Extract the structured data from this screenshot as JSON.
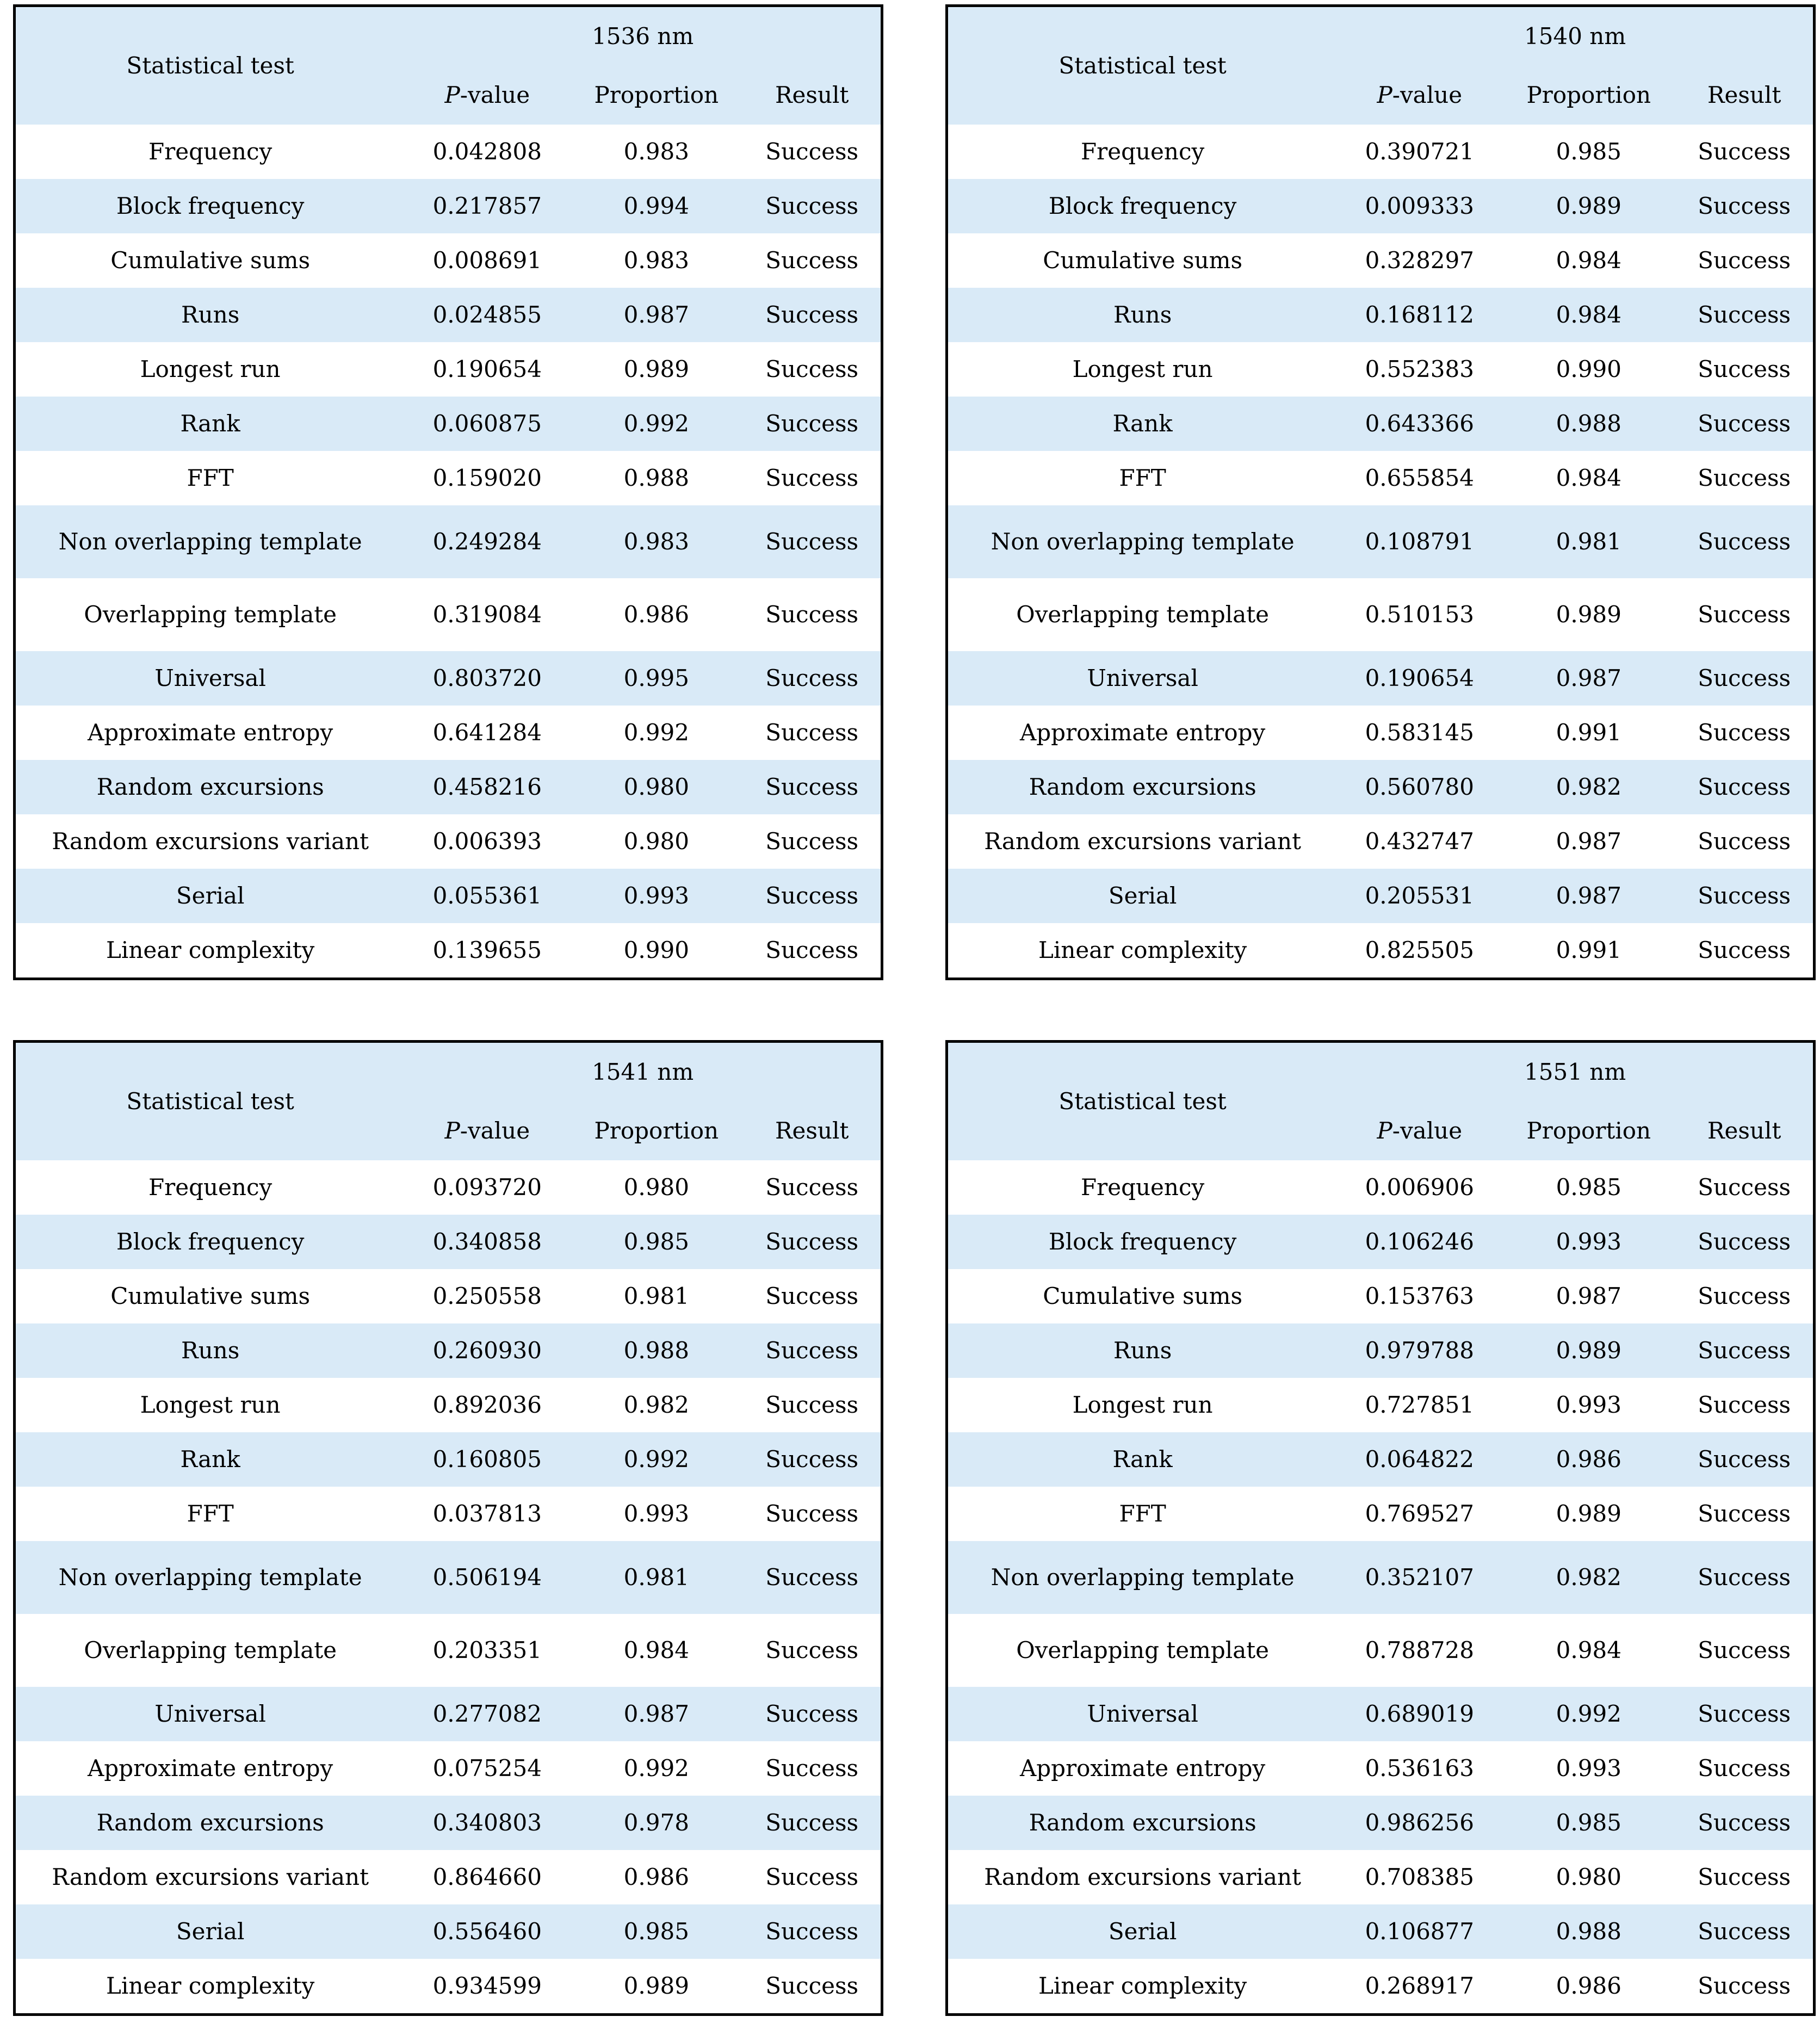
{
  "columns": {
    "test": "Statistical test",
    "p_italic": "P",
    "p_rest": "-value",
    "proportion": "Proportion",
    "result": "Result"
  },
  "tables": [
    {
      "wavelength": "1536 nm",
      "rows": [
        {
          "test": "Frequency",
          "p": "0.042808",
          "proportion": "0.983",
          "result": "Success"
        },
        {
          "test": "Block frequency",
          "p": "0.217857",
          "proportion": "0.994",
          "result": "Success"
        },
        {
          "test": "Cumulative sums",
          "p": "0.008691",
          "proportion": "0.983",
          "result": "Success"
        },
        {
          "test": "Runs",
          "p": "0.024855",
          "proportion": "0.987",
          "result": "Success"
        },
        {
          "test": "Longest run",
          "p": "0.190654",
          "proportion": "0.989",
          "result": "Success"
        },
        {
          "test": "Rank",
          "p": "0.060875",
          "proportion": "0.992",
          "result": "Success"
        },
        {
          "test": "FFT",
          "p": "0.159020",
          "proportion": "0.988",
          "result": "Success"
        },
        {
          "test": "Non overlapping template",
          "p": "0.249284",
          "proportion": "0.983",
          "result": "Success"
        },
        {
          "test": "Overlapping template",
          "p": "0.319084",
          "proportion": "0.986",
          "result": "Success"
        },
        {
          "test": "Universal",
          "p": "0.803720",
          "proportion": "0.995",
          "result": "Success"
        },
        {
          "test": "Approximate entropy",
          "p": "0.641284",
          "proportion": "0.992",
          "result": "Success"
        },
        {
          "test": "Random excursions",
          "p": "0.458216",
          "proportion": "0.980",
          "result": "Success"
        },
        {
          "test": "Random excursions variant",
          "p": "0.006393",
          "proportion": "0.980",
          "result": "Success"
        },
        {
          "test": "Serial",
          "p": "0.055361",
          "proportion": "0.993",
          "result": "Success"
        },
        {
          "test": "Linear complexity",
          "p": "0.139655",
          "proportion": "0.990",
          "result": "Success"
        }
      ]
    },
    {
      "wavelength": "1540 nm",
      "rows": [
        {
          "test": "Frequency",
          "p": "0.390721",
          "proportion": "0.985",
          "result": "Success"
        },
        {
          "test": "Block frequency",
          "p": "0.009333",
          "proportion": "0.989",
          "result": "Success"
        },
        {
          "test": "Cumulative sums",
          "p": "0.328297",
          "proportion": "0.984",
          "result": "Success"
        },
        {
          "test": "Runs",
          "p": "0.168112",
          "proportion": "0.984",
          "result": "Success"
        },
        {
          "test": "Longest run",
          "p": "0.552383",
          "proportion": "0.990",
          "result": "Success"
        },
        {
          "test": "Rank",
          "p": "0.643366",
          "proportion": "0.988",
          "result": "Success"
        },
        {
          "test": "FFT",
          "p": "0.655854",
          "proportion": "0.984",
          "result": "Success"
        },
        {
          "test": "Non overlapping template",
          "p": "0.108791",
          "proportion": "0.981",
          "result": "Success"
        },
        {
          "test": "Overlapping template",
          "p": "0.510153",
          "proportion": "0.989",
          "result": "Success"
        },
        {
          "test": "Universal",
          "p": "0.190654",
          "proportion": "0.987",
          "result": "Success"
        },
        {
          "test": "Approximate entropy",
          "p": "0.583145",
          "proportion": "0.991",
          "result": "Success"
        },
        {
          "test": "Random excursions",
          "p": "0.560780",
          "proportion": "0.982",
          "result": "Success"
        },
        {
          "test": "Random excursions variant",
          "p": "0.432747",
          "proportion": "0.987",
          "result": "Success"
        },
        {
          "test": "Serial",
          "p": "0.205531",
          "proportion": "0.987",
          "result": "Success"
        },
        {
          "test": "Linear complexity",
          "p": "0.825505",
          "proportion": "0.991",
          "result": "Success"
        }
      ]
    },
    {
      "wavelength": "1541 nm",
      "rows": [
        {
          "test": "Frequency",
          "p": "0.093720",
          "proportion": "0.980",
          "result": "Success"
        },
        {
          "test": "Block frequency",
          "p": "0.340858",
          "proportion": "0.985",
          "result": "Success"
        },
        {
          "test": "Cumulative sums",
          "p": "0.250558",
          "proportion": "0.981",
          "result": "Success"
        },
        {
          "test": "Runs",
          "p": "0.260930",
          "proportion": "0.988",
          "result": "Success"
        },
        {
          "test": "Longest run",
          "p": "0.892036",
          "proportion": "0.982",
          "result": "Success"
        },
        {
          "test": "Rank",
          "p": "0.160805",
          "proportion": "0.992",
          "result": "Success"
        },
        {
          "test": "FFT",
          "p": "0.037813",
          "proportion": "0.993",
          "result": "Success"
        },
        {
          "test": "Non overlapping template",
          "p": "0.506194",
          "proportion": "0.981",
          "result": "Success"
        },
        {
          "test": "Overlapping template",
          "p": "0.203351",
          "proportion": "0.984",
          "result": "Success"
        },
        {
          "test": "Universal",
          "p": "0.277082",
          "proportion": "0.987",
          "result": "Success"
        },
        {
          "test": "Approximate entropy",
          "p": "0.075254",
          "proportion": "0.992",
          "result": "Success"
        },
        {
          "test": "Random excursions",
          "p": "0.340803",
          "proportion": "0.978",
          "result": "Success"
        },
        {
          "test": "Random excursions variant",
          "p": "0.864660",
          "proportion": "0.986",
          "result": "Success"
        },
        {
          "test": "Serial",
          "p": "0.556460",
          "proportion": "0.985",
          "result": "Success"
        },
        {
          "test": "Linear complexity",
          "p": "0.934599",
          "proportion": "0.989",
          "result": "Success"
        }
      ]
    },
    {
      "wavelength": "1551 nm",
      "rows": [
        {
          "test": "Frequency",
          "p": "0.006906",
          "proportion": "0.985",
          "result": "Success"
        },
        {
          "test": "Block frequency",
          "p": "0.106246",
          "proportion": "0.993",
          "result": "Success"
        },
        {
          "test": "Cumulative sums",
          "p": "0.153763",
          "proportion": "0.987",
          "result": "Success"
        },
        {
          "test": "Runs",
          "p": "0.979788",
          "proportion": "0.989",
          "result": "Success"
        },
        {
          "test": "Longest run",
          "p": "0.727851",
          "proportion": "0.993",
          "result": "Success"
        },
        {
          "test": "Rank",
          "p": "0.064822",
          "proportion": "0.986",
          "result": "Success"
        },
        {
          "test": "FFT",
          "p": "0.769527",
          "proportion": "0.989",
          "result": "Success"
        },
        {
          "test": "Non overlapping template",
          "p": "0.352107",
          "proportion": "0.982",
          "result": "Success"
        },
        {
          "test": "Overlapping template",
          "p": "0.788728",
          "proportion": "0.984",
          "result": "Success"
        },
        {
          "test": "Universal",
          "p": "0.689019",
          "proportion": "0.992",
          "result": "Success"
        },
        {
          "test": "Approximate entropy",
          "p": "0.536163",
          "proportion": "0.993",
          "result": "Success"
        },
        {
          "test": "Random excursions",
          "p": "0.986256",
          "proportion": "0.985",
          "result": "Success"
        },
        {
          "test": "Random excursions variant",
          "p": "0.708385",
          "proportion": "0.980",
          "result": "Success"
        },
        {
          "test": "Serial",
          "p": "0.106877",
          "proportion": "0.988",
          "result": "Success"
        },
        {
          "test": "Linear complexity",
          "p": "0.268917",
          "proportion": "0.986",
          "result": "Success"
        }
      ]
    }
  ],
  "colors": {
    "stripe_blue": "#d9eaf7",
    "row_white": "#ffffff",
    "border_black": "#000000"
  }
}
